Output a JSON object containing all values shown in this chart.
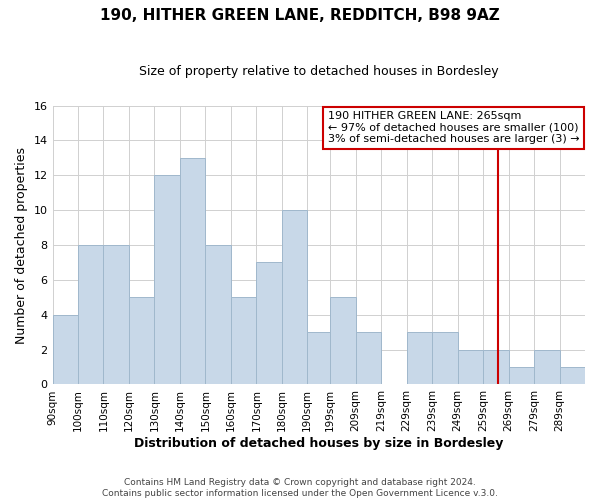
{
  "title": "190, HITHER GREEN LANE, REDDITCH, B98 9AZ",
  "subtitle": "Size of property relative to detached houses in Bordesley",
  "xlabel": "Distribution of detached houses by size in Bordesley",
  "ylabel": "Number of detached properties",
  "footer_line1": "Contains HM Land Registry data © Crown copyright and database right 2024.",
  "footer_line2": "Contains public sector information licensed under the Open Government Licence v.3.0.",
  "bin_labels": [
    "90sqm",
    "100sqm",
    "110sqm",
    "120sqm",
    "130sqm",
    "140sqm",
    "150sqm",
    "160sqm",
    "170sqm",
    "180sqm",
    "190sqm",
    "199sqm",
    "209sqm",
    "219sqm",
    "229sqm",
    "239sqm",
    "249sqm",
    "259sqm",
    "269sqm",
    "279sqm",
    "289sqm"
  ],
  "bin_edges": [
    90,
    100,
    110,
    120,
    130,
    140,
    150,
    160,
    170,
    180,
    190,
    199,
    209,
    219,
    229,
    239,
    249,
    259,
    269,
    279,
    289,
    299
  ],
  "counts": [
    4,
    8,
    8,
    5,
    12,
    13,
    8,
    5,
    7,
    10,
    3,
    5,
    3,
    0,
    3,
    3,
    2,
    2,
    1,
    2,
    1
  ],
  "bar_color": "#c8d8e8",
  "bar_edge_color": "#a0b8cc",
  "grid_color": "#d0d0d0",
  "vline_x": 265,
  "vline_color": "#cc0000",
  "annotation_title": "190 HITHER GREEN LANE: 265sqm",
  "annotation_line1": "← 97% of detached houses are smaller (100)",
  "annotation_line2": "3% of semi-detached houses are larger (3) →",
  "annotation_box_color": "#cc0000",
  "ylim": [
    0,
    16
  ],
  "yticks": [
    0,
    2,
    4,
    6,
    8,
    10,
    12,
    14,
    16
  ],
  "title_fontsize": 11,
  "subtitle_fontsize": 9
}
